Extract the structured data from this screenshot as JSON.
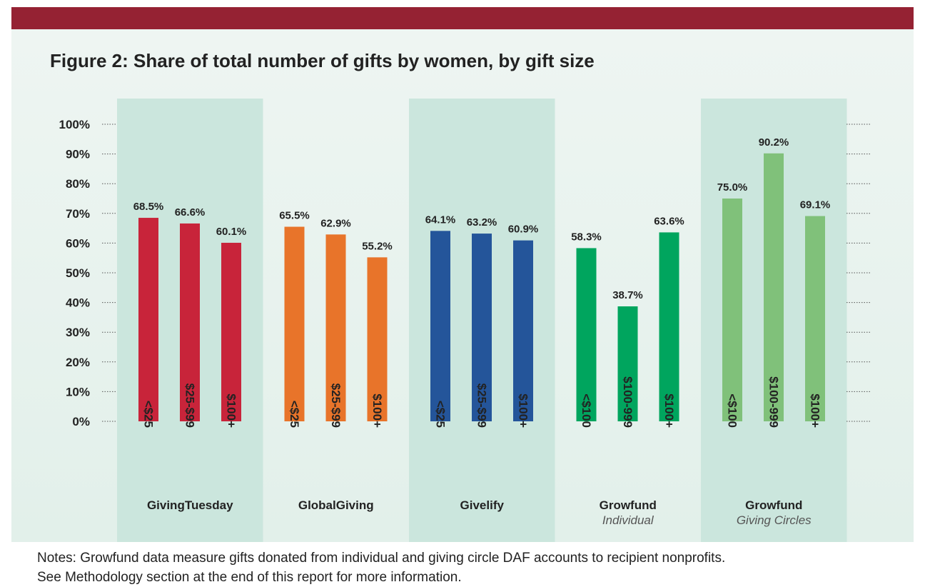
{
  "title": {
    "bold": "Figure 2:",
    "rest": "Share of total number of gifts by women, by gift size"
  },
  "colors": {
    "topbar": "#952233",
    "panel_top": "#eef5f2",
    "panel_bottom": "#e2f0ea",
    "band": "#cbe6dd",
    "gridline": "#555555"
  },
  "chart_data": {
    "type": "bar",
    "ylim": [
      0,
      100
    ],
    "yticks": [
      0,
      10,
      20,
      30,
      40,
      50,
      60,
      70,
      80,
      90,
      100
    ],
    "ytick_labels": [
      "0%",
      "10%",
      "20%",
      "30%",
      "40%",
      "50%",
      "60%",
      "70%",
      "80%",
      "90%",
      "100%"
    ],
    "groups": [
      {
        "name": "GivingTuesday",
        "subtitle": "",
        "color": "#c8243a",
        "shaded": true,
        "categories": [
          "<$25",
          "$25-$99",
          "$100+"
        ],
        "values": [
          68.5,
          66.6,
          60.1
        ],
        "labels": [
          "68.5%",
          "66.6%",
          "60.1%"
        ]
      },
      {
        "name": "GlobalGiving",
        "subtitle": "",
        "color": "#e8742a",
        "shaded": false,
        "categories": [
          "<$25",
          "$25-$99",
          "$100+"
        ],
        "values": [
          65.5,
          62.9,
          55.2
        ],
        "labels": [
          "65.5%",
          "62.9%",
          "55.2%"
        ]
      },
      {
        "name": "Givelify",
        "subtitle": "",
        "color": "#24559a",
        "shaded": true,
        "categories": [
          "<$25",
          "$25-$99",
          "$100+"
        ],
        "values": [
          64.1,
          63.2,
          60.9
        ],
        "labels": [
          "64.1%",
          "63.2%",
          "60.9%"
        ]
      },
      {
        "name": "Growfund",
        "subtitle": "Individual",
        "color": "#00a55e",
        "shaded": false,
        "categories": [
          "<$100",
          "$100-999",
          "$100+"
        ],
        "values": [
          58.3,
          38.7,
          63.6
        ],
        "labels": [
          "58.3%",
          "38.7%",
          "63.6%"
        ]
      },
      {
        "name": "Growfund",
        "subtitle": "Giving Circles",
        "color": "#80c17a",
        "shaded": true,
        "categories": [
          "<$100",
          "$100-999",
          "$100+"
        ],
        "values": [
          75.0,
          90.2,
          69.1
        ],
        "labels": [
          "75.0%",
          "90.2%",
          "69.1%"
        ]
      }
    ]
  },
  "notes": [
    "Notes: Growfund data measure gifts donated from individual and giving circle DAF accounts to recipient nonprofits.",
    "See Methodology section at the end of this report for more information."
  ]
}
